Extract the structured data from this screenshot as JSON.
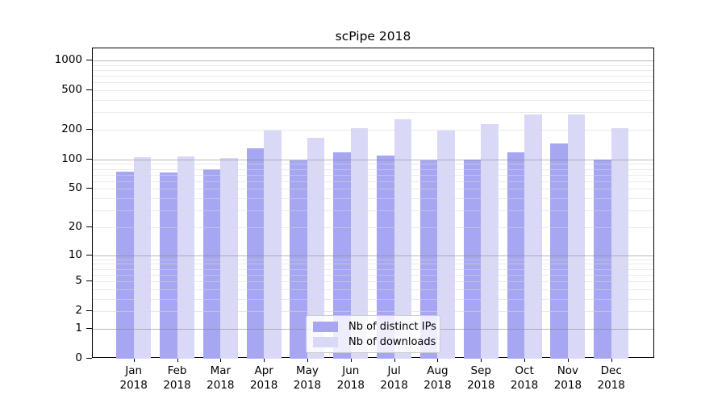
{
  "title": "scPipe 2018",
  "chart_data": {
    "type": "bar",
    "title": "scPipe 2018",
    "categories": [
      "Jan 2018",
      "Feb 2018",
      "Mar 2018",
      "Apr 2018",
      "May 2018",
      "Jun 2018",
      "Jul 2018",
      "Aug 2018",
      "Sep 2018",
      "Oct 2018",
      "Nov 2018",
      "Dec 2018"
    ],
    "x_tick_months": [
      "Jan",
      "Feb",
      "Mar",
      "Apr",
      "May",
      "Jun",
      "Jul",
      "Aug",
      "Sep",
      "Oct",
      "Nov",
      "Dec"
    ],
    "x_tick_year": "2018",
    "series": [
      {
        "name": "Nb of distinct IPs",
        "color": "#a6a6f2",
        "values": [
          75,
          74,
          80,
          129,
          97,
          119,
          110,
          97,
          100,
          119,
          146,
          100
        ]
      },
      {
        "name": "Nb of downloads",
        "color": "#d9d9f7",
        "values": [
          106,
          108,
          104,
          196,
          165,
          208,
          256,
          195,
          228,
          287,
          287,
          207
        ]
      }
    ],
    "yscale": "log1p",
    "ylim": [
      0,
      1325
    ],
    "yticks": [
      0,
      1,
      2,
      5,
      10,
      20,
      50,
      100,
      200,
      500,
      1000
    ],
    "grid_major": [
      1,
      10,
      100,
      1000
    ],
    "grid_minor": [
      2,
      3,
      4,
      5,
      6,
      7,
      8,
      9,
      20,
      30,
      40,
      50,
      60,
      70,
      80,
      90,
      200,
      300,
      400,
      500,
      600,
      700,
      800,
      900
    ],
    "legend_position": "lower center",
    "grid": "horizontal only"
  },
  "colors": {
    "distinct_ips": "#a6a6f2",
    "downloads": "#d9d9f7",
    "grid_major": "#b3b3b3",
    "grid_minor": "#e8e8e8",
    "axis": "#000000",
    "background": "#ffffff"
  }
}
